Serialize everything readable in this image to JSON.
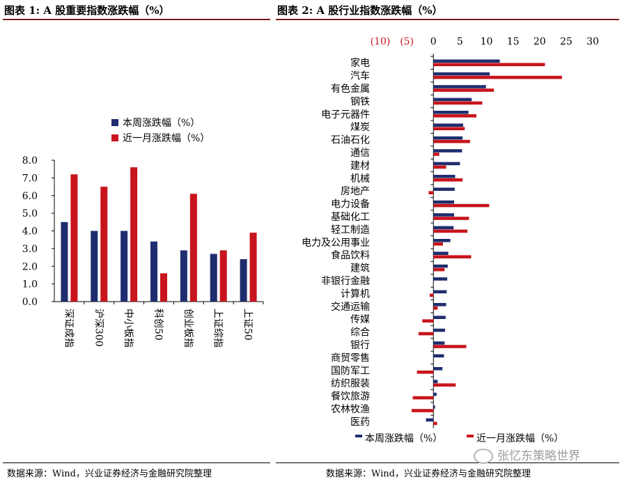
{
  "figure1": {
    "title": "图表 1:  A 股重要指数涨跌幅（%）",
    "source": "数据来源：Wind，兴业证券经济与金融研究院整理"
  },
  "figure2": {
    "title": "图表 2:  A 股行业指数涨跌幅（%）",
    "source": "数据来源：Wind，兴业证券经济与金融研究院整理"
  },
  "watermark": "张忆东策略世界",
  "colors": {
    "week": "#1f2d6e",
    "month": "#c8141c",
    "negative_tick": "#c8141c",
    "title_rule": "#7a1c1c"
  },
  "chart_data": [
    {
      "type": "bar",
      "orientation": "vertical",
      "categories": [
        "深证成指",
        "沪深300",
        "中小板指",
        "科创50",
        "创业板指",
        "上证综指",
        "上证50"
      ],
      "series": [
        {
          "name": "本周涨跌幅（%）",
          "values": [
            4.5,
            4.0,
            4.0,
            3.4,
            2.9,
            2.7,
            2.4
          ]
        },
        {
          "name": "近一月涨跌幅（%）",
          "values": [
            7.2,
            6.5,
            7.6,
            1.6,
            6.1,
            2.9,
            3.9
          ]
        }
      ],
      "y_ticks": [
        "0.0",
        "1.0",
        "2.0",
        "3.0",
        "4.0",
        "5.0",
        "6.0",
        "7.0",
        "8.0"
      ],
      "ylim": [
        0,
        8
      ],
      "legend_position": "top-left",
      "grid": false
    },
    {
      "type": "bar",
      "orientation": "horizontal",
      "categories": [
        "家电",
        "汽车",
        "有色金属",
        "钢铁",
        "电子元器件",
        "煤炭",
        "石油石化",
        "通信",
        "建材",
        "机械",
        "房地产",
        "电力设备",
        "基础化工",
        "轻工制造",
        "电力及公用事业",
        "食品饮料",
        "建筑",
        "非银行金融",
        "计算机",
        "交通运输",
        "传媒",
        "综合",
        "银行",
        "商贸零售",
        "国防军工",
        "纺织服装",
        "餐饮旅游",
        "农林牧渔",
        "医药"
      ],
      "series": [
        {
          "name": "本周涨跌幅（%）",
          "values": [
            12.5,
            10.6,
            9.9,
            7.2,
            6.6,
            5.6,
            5.5,
            5.4,
            5.0,
            4.1,
            4.0,
            3.9,
            3.9,
            3.8,
            3.2,
            2.8,
            2.7,
            2.6,
            2.5,
            2.4,
            2.3,
            2.2,
            2.1,
            2.0,
            1.7,
            0.8,
            0.6,
            0.3,
            -1.4
          ]
        },
        {
          "name": "近一月涨跌幅（%）",
          "values": [
            21.0,
            24.2,
            11.4,
            9.2,
            8.1,
            5.9,
            6.9,
            1.1,
            2.4,
            5.5,
            -0.9,
            10.5,
            6.7,
            6.4,
            1.8,
            7.1,
            2.1,
            0.0,
            -0.7,
            0.8,
            -2.1,
            -2.8,
            6.2,
            0.0,
            -3.1,
            4.2,
            -3.9,
            -4.1,
            0.7
          ]
        }
      ],
      "x_ticks": [
        "(10)",
        "(5)",
        "0",
        "5",
        "10",
        "15",
        "20",
        "25",
        "30"
      ],
      "xlim": [
        -10,
        30
      ],
      "legend_position": "bottom",
      "grid": false
    }
  ]
}
